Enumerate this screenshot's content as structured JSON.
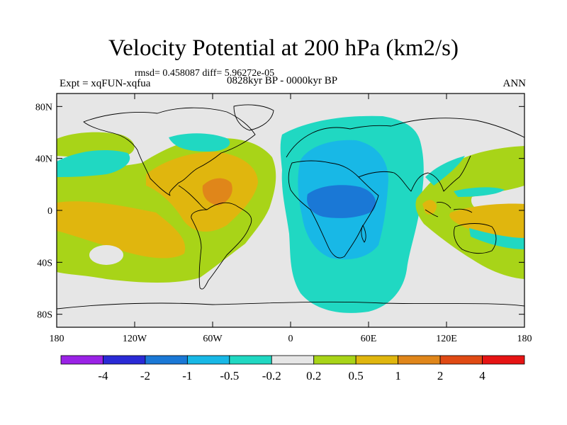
{
  "chart_data": {
    "type": "contour-map",
    "title": "Velocity Potential at 200 hPa (km2/s)",
    "stats_line": "rmsd= 0.458087 diff= 5.96272e-05",
    "left_label": "Expt = xqFUN-xqfua",
    "center_label": "0828kyr BP - 0000kyr BP",
    "right_label": "ANN",
    "x_ticks": [
      "180",
      "120W",
      "60W",
      "0",
      "60E",
      "120E",
      "180"
    ],
    "x_tick_values": [
      -180,
      -120,
      -60,
      0,
      60,
      120,
      180
    ],
    "y_ticks": [
      "80N",
      "40N",
      "0",
      "40S",
      "80S"
    ],
    "y_tick_values": [
      80,
      40,
      0,
      -40,
      -80
    ],
    "xlim": [
      -180,
      180
    ],
    "ylim": [
      -90,
      90
    ],
    "colorbar": {
      "levels": [
        "-4",
        "-2",
        "-1",
        "-0.5",
        "-0.2",
        "0.2",
        "0.5",
        "1",
        "2",
        "4"
      ],
      "colors": [
        "#9a22e6",
        "#2a2ad6",
        "#1a78d6",
        "#18b8e6",
        "#20d8c2",
        "#e6e6e6",
        "#a8d418",
        "#e0b60e",
        "#e0861a",
        "#e04a14",
        "#e61414"
      ]
    },
    "regions": [
      {
        "label": "positive anomaly, Pacific and Americas",
        "value_range": [
          0.2,
          0.5
        ]
      },
      {
        "label": "maximum over Caribbean / northern South America",
        "value_range": [
          1,
          2
        ]
      },
      {
        "label": "negative anomaly centred on Africa and Indian Ocean",
        "value_range": [
          -1,
          -0.5
        ]
      },
      {
        "label": "positive anomaly, Maritime Continent and western Pacific",
        "value_range": [
          0.5,
          1
        ]
      }
    ]
  }
}
